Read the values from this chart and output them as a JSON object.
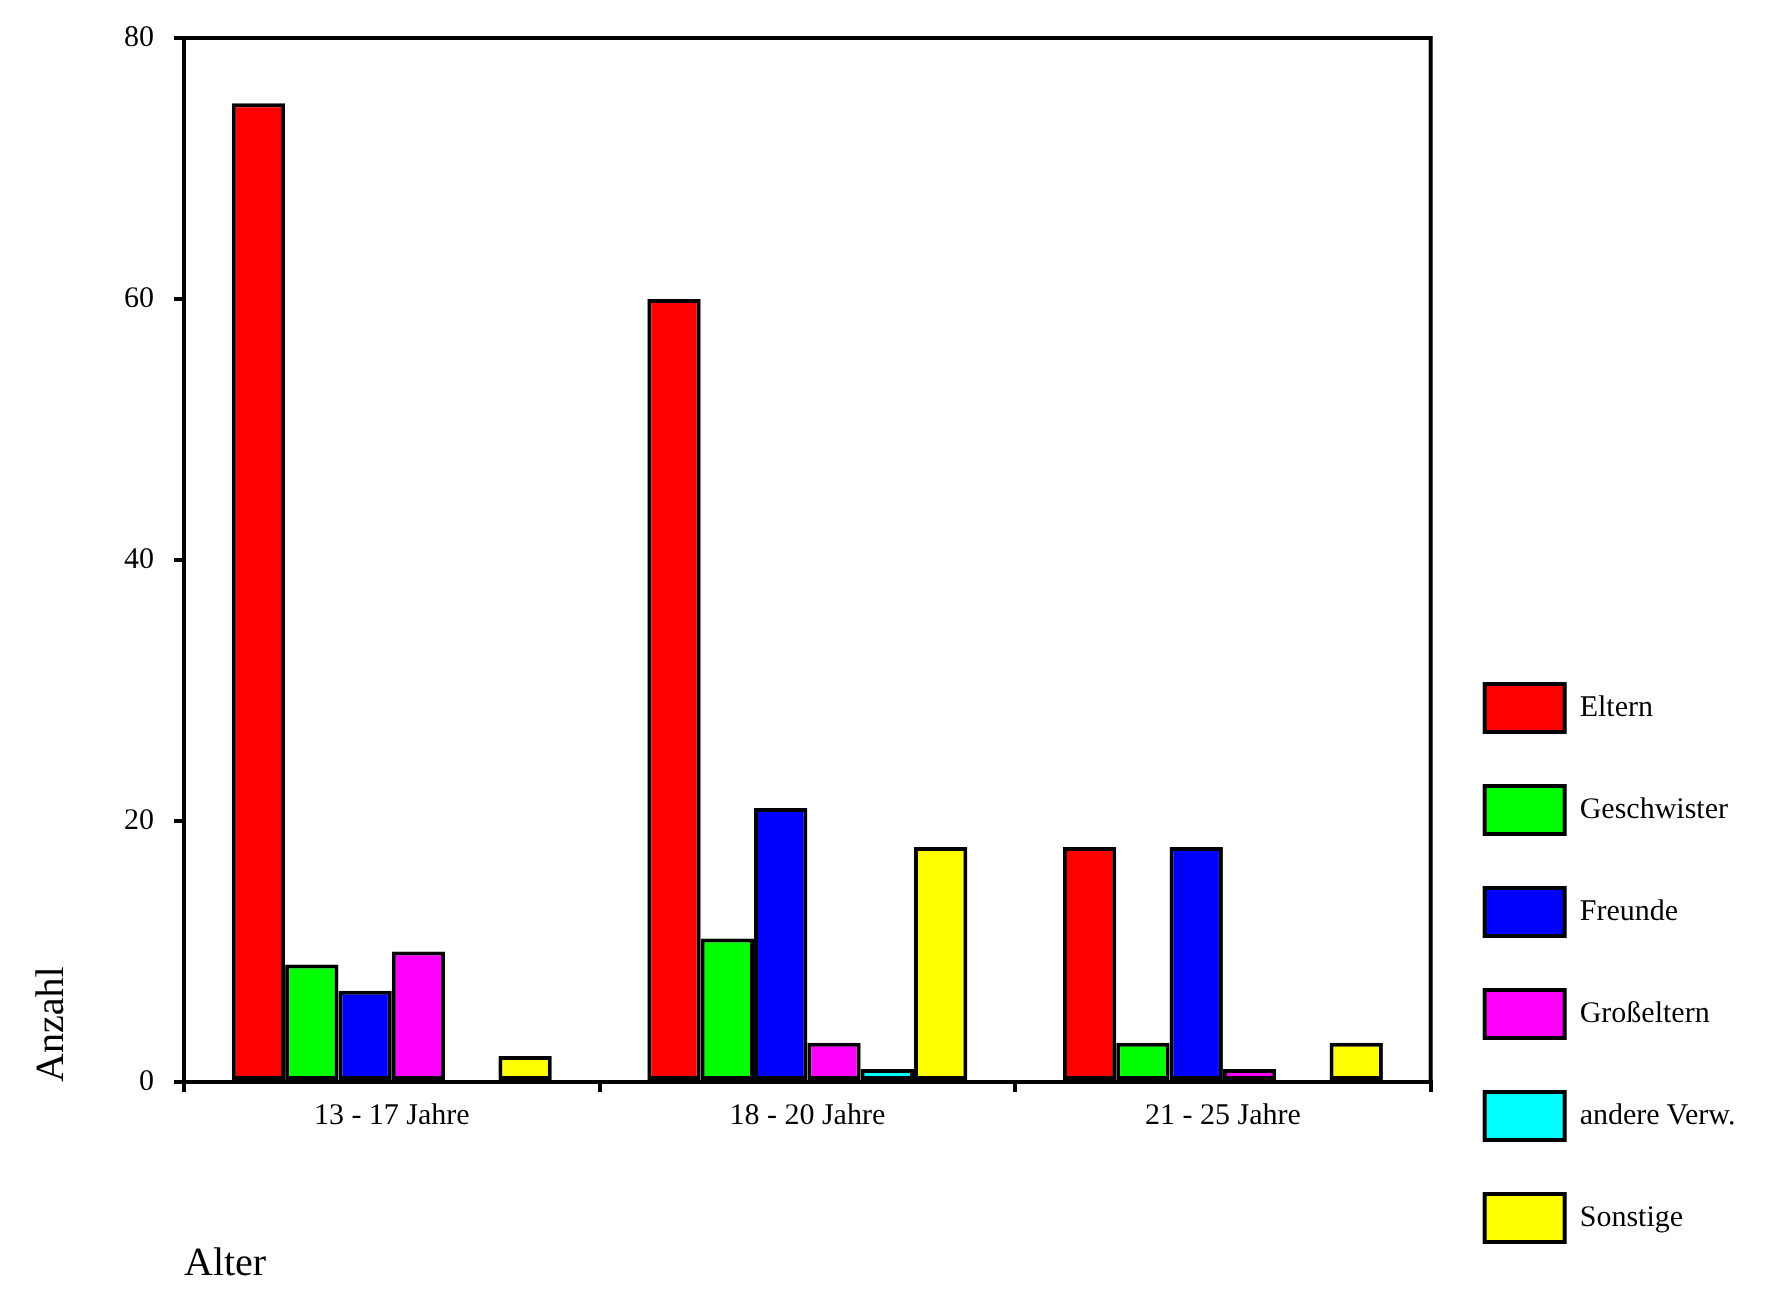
{
  "chart_data": {
    "type": "bar",
    "xlabel": "Alter",
    "ylabel": "Anzahl",
    "categories": [
      "13 - 17 Jahre",
      "18 - 20 Jahre",
      "21 - 25 Jahre"
    ],
    "series": [
      {
        "name": "Eltern",
        "color": "#ff0000",
        "values": [
          75,
          60,
          18
        ]
      },
      {
        "name": "Geschwister",
        "color": "#00ff00",
        "values": [
          9,
          11,
          3
        ]
      },
      {
        "name": "Freunde",
        "color": "#0000ff",
        "values": [
          7,
          21,
          18
        ]
      },
      {
        "name": "Großeltern",
        "color": "#ff00ff",
        "values": [
          10,
          3,
          1
        ]
      },
      {
        "name": "andere Verw.",
        "color": "#00ffff",
        "values": [
          null,
          1,
          null
        ]
      },
      {
        "name": "Sonstige",
        "color": "#ffff00",
        "values": [
          2,
          18,
          3
        ]
      }
    ],
    "ylim": [
      0,
      80
    ],
    "yticks": [
      0,
      20,
      40,
      60,
      80
    ],
    "grid": false,
    "legend": "right"
  }
}
